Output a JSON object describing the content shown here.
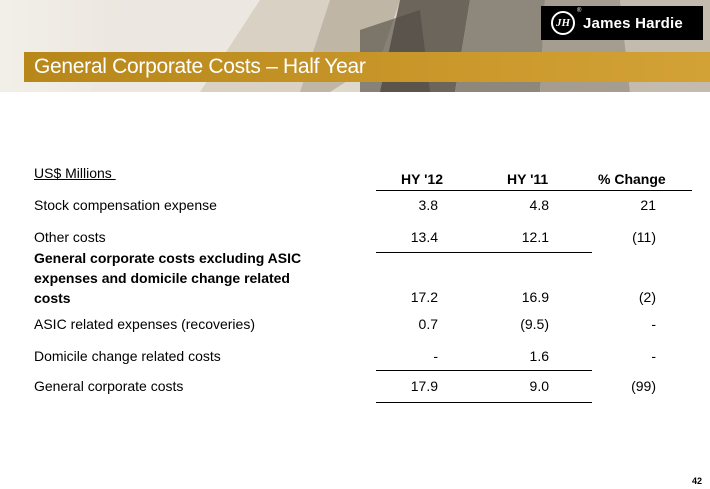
{
  "header": {
    "title": "General Corporate Costs – Half Year",
    "logo_text": "James Hardie",
    "logo_mark": "JH",
    "logo_reg": "®"
  },
  "table": {
    "units_label": "US$ Millions ",
    "columns": [
      "HY '12",
      "HY '11",
      "% Change"
    ],
    "rows": [
      {
        "label": "Stock compensation expense",
        "bold": false,
        "hy12": "3.8",
        "hy11": "4.8",
        "change": "21"
      },
      {
        "label": "Other costs",
        "bold": false,
        "hy12": "13.4",
        "hy11": "12.1",
        "change": "(11)"
      },
      {
        "label": "General corporate costs excluding ASIC expenses and domicile change related costs",
        "bold": true,
        "label_lines": [
          "General corporate costs excluding ASIC",
          "expenses and domicile change related",
          "costs"
        ],
        "hy12": "17.2",
        "hy11": "16.9",
        "change": "(2)"
      },
      {
        "label": "ASIC related expenses (recoveries)",
        "bold": false,
        "hy12": "0.7",
        "hy11": "(9.5)",
        "change": "-"
      },
      {
        "label": "Domicile change related costs",
        "bold": false,
        "hy12": "-",
        "hy11": "1.6",
        "change": "-"
      },
      {
        "label": "General corporate costs",
        "bold": false,
        "hy12": "17.9",
        "hy11": "9.0",
        "change": "(99)"
      }
    ]
  },
  "footer": {
    "page_number": "42"
  },
  "colors": {
    "title_bar": "#c9972a",
    "logo_bg": "#000000"
  }
}
